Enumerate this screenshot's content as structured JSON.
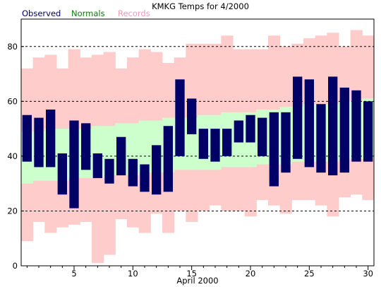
{
  "chart_data": {
    "type": "bar",
    "title": "KMKG Temps for 4/2000",
    "xlabel": "April 2000",
    "ylabel": "",
    "xlim": [
      0.5,
      30.5
    ],
    "ylim": [
      0,
      90
    ],
    "yticks": [
      0,
      20,
      40,
      60,
      80
    ],
    "xticks": [
      5,
      10,
      15,
      20,
      25,
      30
    ],
    "grid": "dashed horizontal lines at 20, 40, 60, 80",
    "legend": "top-left",
    "x": [
      1,
      2,
      3,
      4,
      5,
      6,
      7,
      8,
      9,
      10,
      11,
      12,
      13,
      14,
      15,
      16,
      17,
      18,
      19,
      20,
      21,
      22,
      23,
      24,
      25,
      26,
      27,
      28,
      29,
      30
    ],
    "series": [
      {
        "name": "Records",
        "color": "#ffcccc",
        "high": [
          72,
          76,
          77,
          72,
          79,
          76,
          77,
          78,
          72,
          76,
          79,
          78,
          74,
          76,
          81,
          81,
          81,
          84,
          79,
          79,
          79,
          84,
          80,
          81,
          83,
          84,
          85,
          80,
          86,
          84
        ],
        "low": [
          9,
          16,
          12,
          14,
          15,
          16,
          1,
          4,
          17,
          14,
          12,
          19,
          12,
          20,
          16,
          20,
          22,
          20,
          20,
          18,
          24,
          22,
          19,
          24,
          24,
          22,
          18,
          25,
          26,
          24
        ]
      },
      {
        "name": "Normals",
        "color": "#ccffcc",
        "high": [
          49,
          49,
          50,
          50,
          50,
          50,
          51,
          51,
          52,
          52,
          53,
          53,
          54,
          54,
          54,
          55,
          55,
          56,
          56,
          56,
          57,
          57,
          58,
          58,
          59,
          59,
          59,
          60,
          60,
          61
        ],
        "low": [
          30,
          31,
          31,
          31,
          32,
          32,
          32,
          33,
          33,
          33,
          34,
          34,
          34,
          35,
          35,
          35,
          35,
          36,
          36,
          36,
          37,
          37,
          37,
          38,
          38,
          38,
          38,
          39,
          39,
          39
        ]
      },
      {
        "name": "Observed",
        "color": "#000066",
        "high": [
          55,
          54,
          57,
          41,
          53,
          52,
          41,
          39,
          47,
          39,
          37,
          44,
          51,
          68,
          61,
          50,
          50,
          50,
          53,
          55,
          54,
          56,
          56,
          69,
          68,
          59,
          69,
          65,
          64,
          60
        ],
        "low": [
          38,
          36,
          36,
          26,
          21,
          35,
          32,
          30,
          33,
          29,
          27,
          26,
          27,
          40,
          48,
          39,
          38,
          40,
          45,
          45,
          40,
          29,
          34,
          39,
          36,
          34,
          33,
          34,
          38,
          38
        ]
      }
    ]
  }
}
